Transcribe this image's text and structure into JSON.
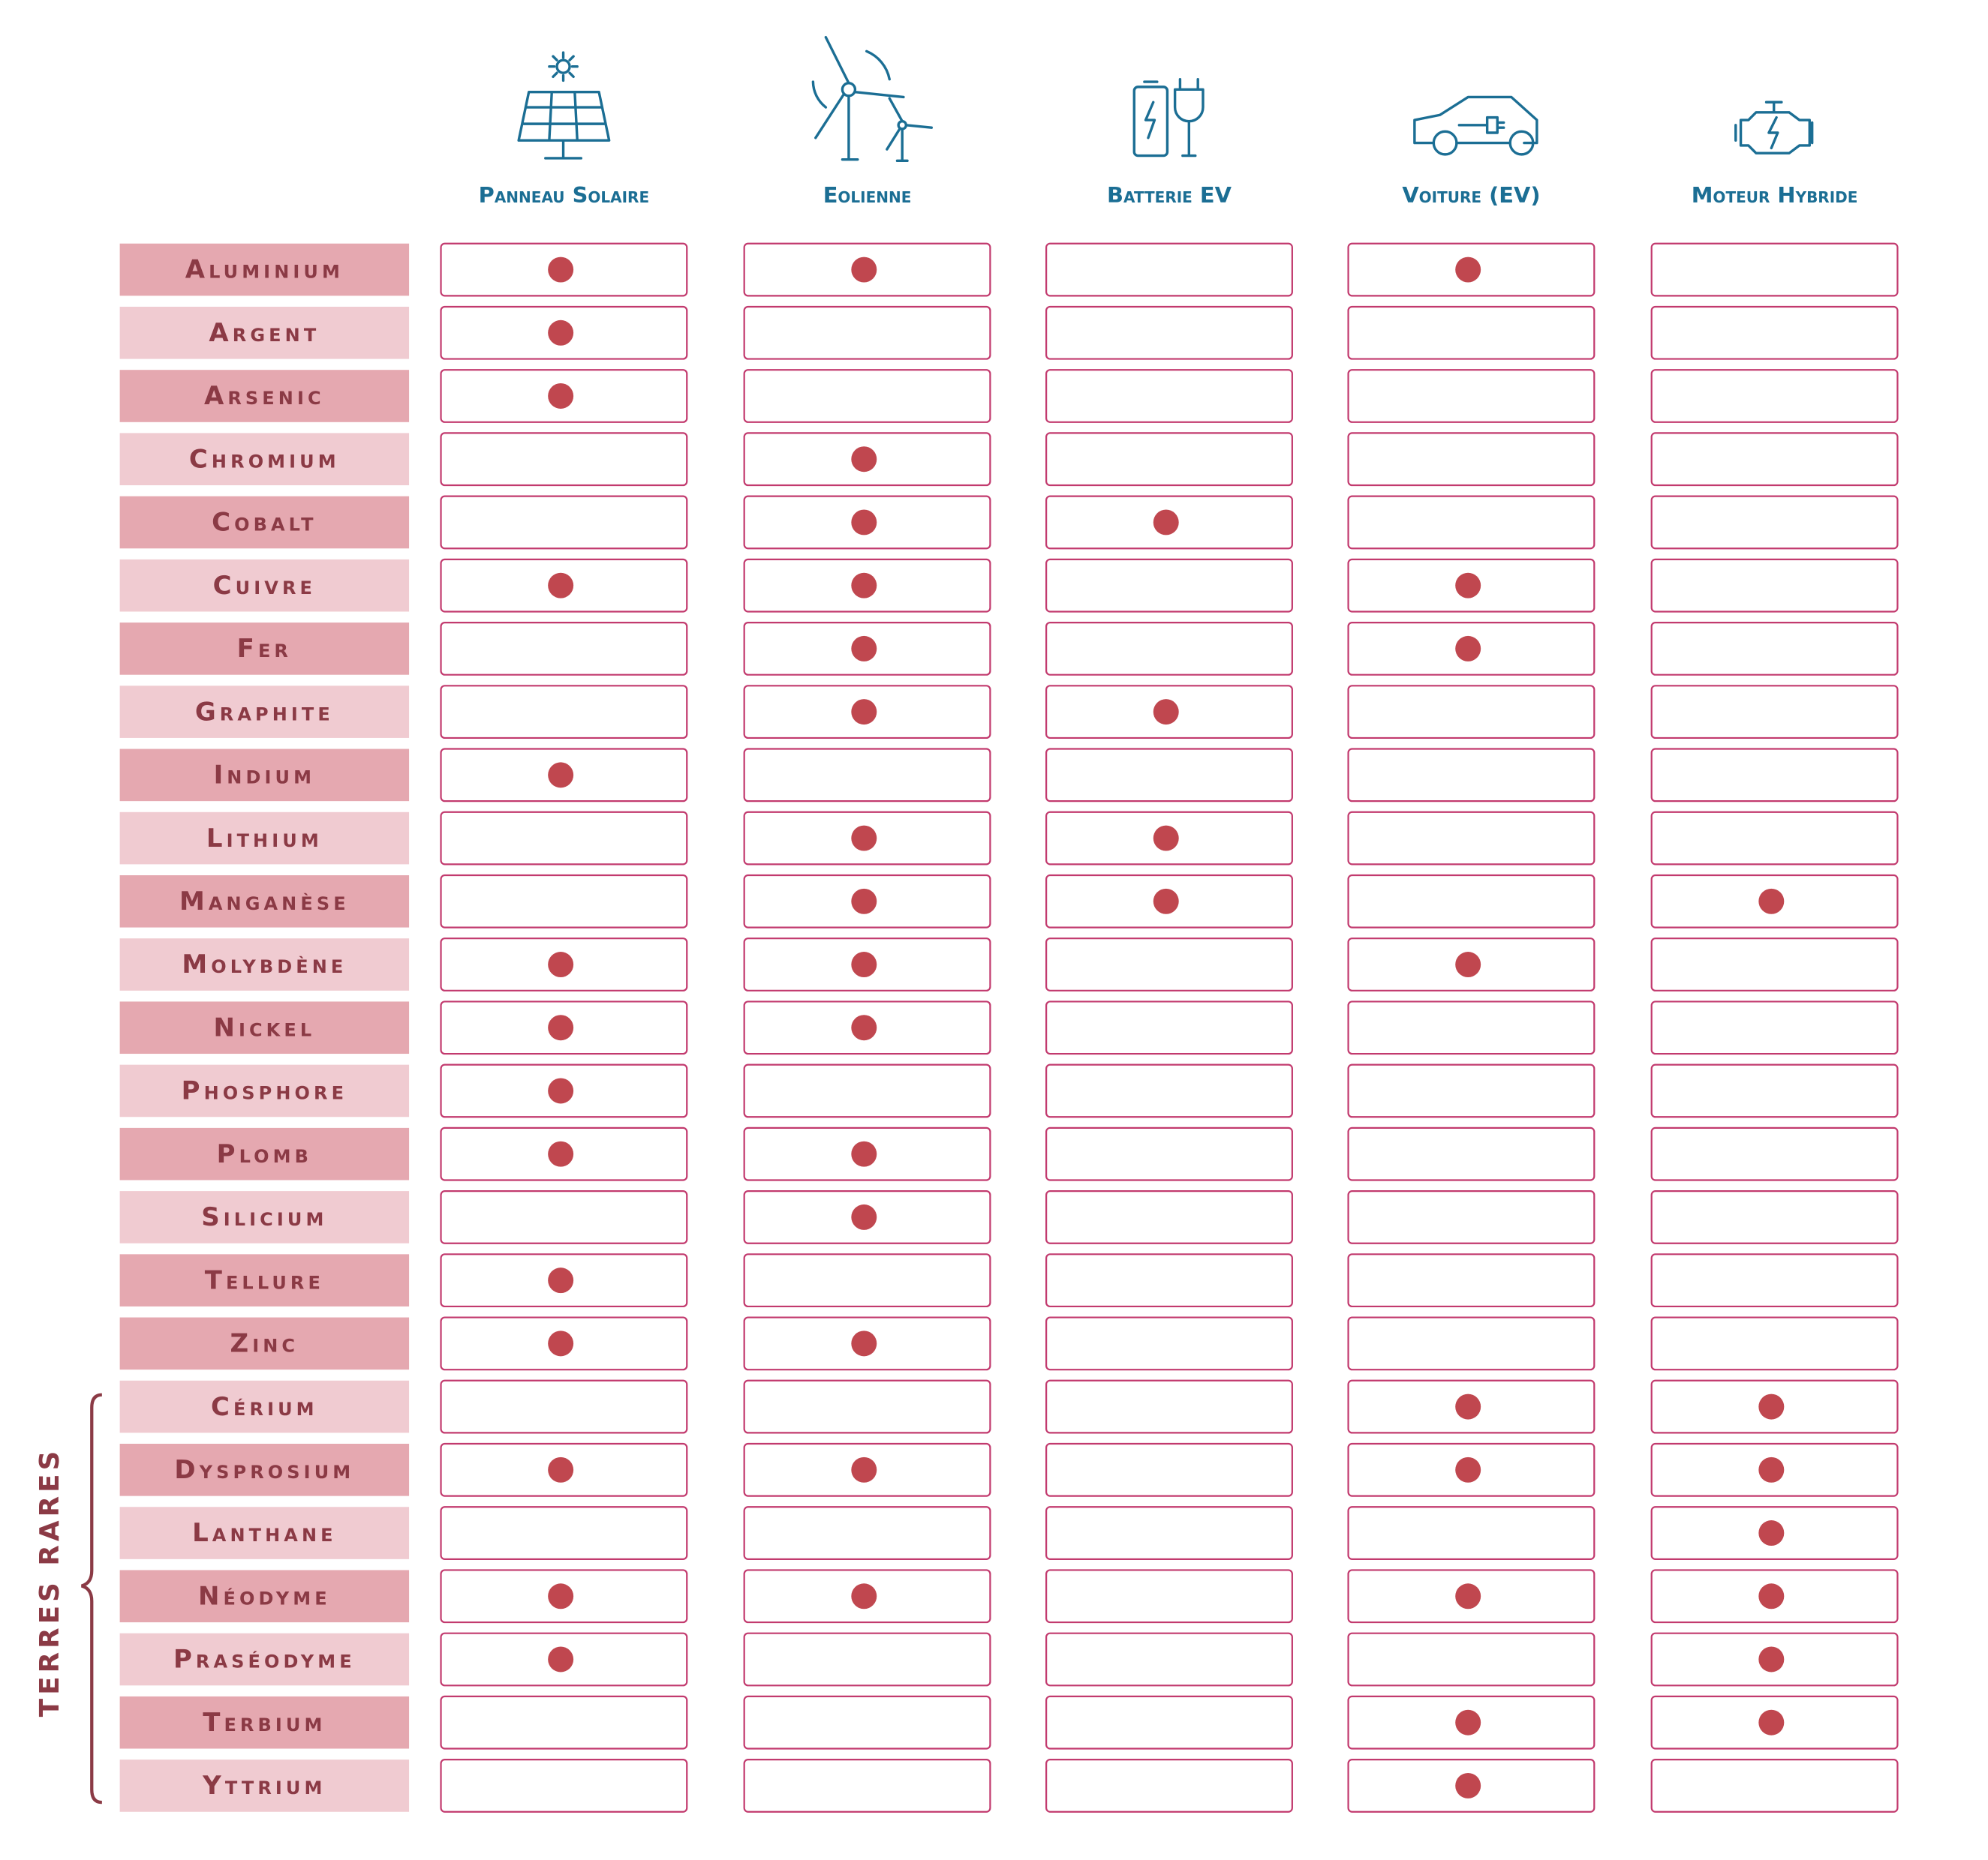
{
  "columns": [
    "Panneau Solaire",
    "Eolienne",
    "Batterie EV",
    "Voiture (EV)",
    "Moteur Hybride"
  ],
  "group_label": "TERRES RARES",
  "rows": [
    {
      "name": "Aluminium",
      "color": "#e5a8b0",
      "uses": [
        true,
        true,
        false,
        true,
        false
      ]
    },
    {
      "name": "Argent",
      "color": "#f0cbd1",
      "uses": [
        true,
        false,
        false,
        false,
        false
      ]
    },
    {
      "name": "Arsenic",
      "color": "#e5a8b0",
      "uses": [
        true,
        false,
        false,
        false,
        false
      ]
    },
    {
      "name": "Chromium",
      "color": "#f0cbd1",
      "uses": [
        false,
        true,
        false,
        false,
        false
      ]
    },
    {
      "name": "Cobalt",
      "color": "#e5a8b0",
      "uses": [
        false,
        true,
        true,
        false,
        false
      ]
    },
    {
      "name": "Cuivre",
      "color": "#f0cbd1",
      "uses": [
        true,
        true,
        false,
        true,
        false
      ]
    },
    {
      "name": "Fer",
      "color": "#e5a8b0",
      "uses": [
        false,
        true,
        false,
        true,
        false
      ]
    },
    {
      "name": "Graphite",
      "color": "#f0cbd1",
      "uses": [
        false,
        true,
        true,
        false,
        false
      ]
    },
    {
      "name": "Indium",
      "color": "#e5a8b0",
      "uses": [
        true,
        false,
        false,
        false,
        false
      ]
    },
    {
      "name": "Lithium",
      "color": "#f0cbd1",
      "uses": [
        false,
        true,
        true,
        false,
        false
      ]
    },
    {
      "name": "Manganèse",
      "color": "#e5a8b0",
      "uses": [
        false,
        true,
        true,
        false,
        true
      ]
    },
    {
      "name": "Molybdène",
      "color": "#f0cbd1",
      "uses": [
        true,
        true,
        false,
        true,
        false
      ]
    },
    {
      "name": "Nickel",
      "color": "#e5a8b0",
      "uses": [
        true,
        true,
        false,
        false,
        false
      ]
    },
    {
      "name": "Phosphore",
      "color": "#f0cbd1",
      "uses": [
        true,
        false,
        false,
        false,
        false
      ]
    },
    {
      "name": "Plomb",
      "color": "#e5a8b0",
      "uses": [
        true,
        true,
        false,
        false,
        false
      ]
    },
    {
      "name": "Silicium",
      "color": "#f0cbd1",
      "uses": [
        false,
        true,
        false,
        false,
        false
      ]
    },
    {
      "name": "Tellure",
      "color": "#e5a8b0",
      "uses": [
        true,
        false,
        false,
        false,
        false
      ]
    },
    {
      "name": "Zinc",
      "color": "#e5a8b0",
      "uses": [
        true,
        true,
        false,
        false,
        false
      ]
    },
    {
      "name": "Cérium",
      "color": "#f0cbd1",
      "uses": [
        false,
        false,
        false,
        true,
        true
      ]
    },
    {
      "name": "Dysprosium",
      "color": "#e5a8b0",
      "uses": [
        true,
        true,
        false,
        true,
        true
      ]
    },
    {
      "name": "Lanthane",
      "color": "#f0cbd1",
      "uses": [
        false,
        false,
        false,
        false,
        true
      ]
    },
    {
      "name": "Néodyme",
      "color": "#e5a8b0",
      "uses": [
        true,
        true,
        false,
        true,
        true
      ]
    },
    {
      "name": "Praséodyme",
      "color": "#f0cbd1",
      "uses": [
        true,
        false,
        false,
        false,
        true
      ]
    },
    {
      "name": "Terbium",
      "color": "#e5a8b0",
      "uses": [
        false,
        false,
        false,
        true,
        true
      ]
    },
    {
      "name": "Yttrium",
      "color": "#f0cbd1",
      "uses": [
        false,
        false,
        false,
        true,
        false
      ]
    }
  ]
}
